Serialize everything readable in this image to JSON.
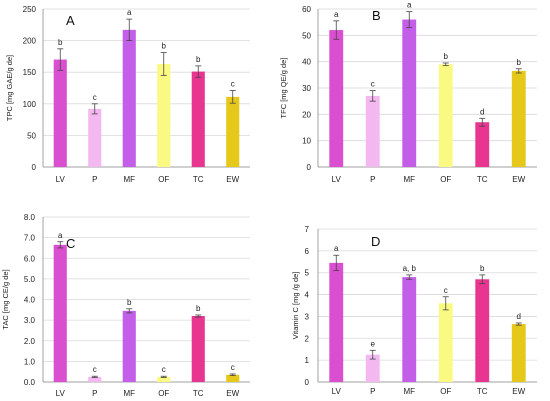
{
  "chart_data": [
    {
      "type": "bar",
      "panel_label": "A",
      "categories": [
        "LV",
        "P",
        "MF",
        "OF",
        "TC",
        "EW"
      ],
      "values": [
        170,
        92,
        217,
        163,
        151,
        111
      ],
      "errors": [
        17,
        8,
        17,
        18,
        9,
        10
      ],
      "significance": [
        "b",
        "c",
        "a",
        "b",
        "b",
        "c"
      ],
      "ylabel": "TPC [mg GAE/g de]",
      "ylim": [
        0,
        250
      ],
      "yticks": [
        "0",
        "50",
        "100",
        "150",
        "200",
        "250"
      ],
      "grid": true,
      "colors": [
        "#d94fd0",
        "#f3b8f0",
        "#c35ee8",
        "#fafa82",
        "#e8358f",
        "#e6c81a"
      ]
    },
    {
      "type": "bar",
      "panel_label": "B",
      "categories": [
        "LV",
        "P",
        "MF",
        "OF",
        "TC",
        "EW"
      ],
      "values": [
        52,
        27,
        56,
        39,
        17,
        36.5
      ],
      "errors": [
        3.5,
        2,
        3,
        0.5,
        1.5,
        0.8
      ],
      "significance": [
        "a",
        "c",
        "a",
        "b",
        "d",
        "b"
      ],
      "ylabel": "TFC [mg QE/g de]",
      "ylim": [
        0,
        60
      ],
      "yticks": [
        "0",
        "10",
        "20",
        "30",
        "40",
        "50",
        "60"
      ],
      "grid": true,
      "colors": [
        "#d94fd0",
        "#f3b8f0",
        "#c35ee8",
        "#fafa82",
        "#e8358f",
        "#e6c81a"
      ]
    },
    {
      "type": "bar",
      "panel_label": "C",
      "categories": [
        "LV",
        "P",
        "MF",
        "OF",
        "TC",
        "EW"
      ],
      "values": [
        6.65,
        0.25,
        3.45,
        0.25,
        3.2,
        0.35
      ],
      "errors": [
        0.15,
        0.03,
        0.1,
        0.03,
        0.05,
        0.04
      ],
      "significance": [
        "a",
        "c",
        "b",
        "c",
        "b",
        "c"
      ],
      "ylabel": "TAC [mg CE/g de]",
      "ylim": [
        0,
        8
      ],
      "yticks": [
        "0.0",
        "1.0",
        "2.0",
        "3.0",
        "4.0",
        "5.0",
        "6.0",
        "7.0",
        "8.0"
      ],
      "grid": true,
      "colors": [
        "#d94fd0",
        "#f3b8f0",
        "#c35ee8",
        "#fafa82",
        "#e8358f",
        "#e6c81a"
      ]
    },
    {
      "type": "bar",
      "panel_label": "D",
      "categories": [
        "LV",
        "P",
        "MF",
        "OF",
        "TC",
        "EW"
      ],
      "values": [
        5.45,
        1.25,
        4.8,
        3.6,
        4.7,
        2.65
      ],
      "errors": [
        0.35,
        0.2,
        0.1,
        0.3,
        0.2,
        0.05
      ],
      "significance": [
        "a",
        "e",
        "a, b",
        "c",
        "b",
        "d"
      ],
      "ylabel": "Vitamin C [mg /g de]",
      "ylim": [
        0,
        7
      ],
      "yticks": [
        "0",
        "1",
        "2",
        "3",
        "4",
        "5",
        "6",
        "7"
      ],
      "grid": true,
      "colors": [
        "#d94fd0",
        "#f3b8f0",
        "#c35ee8",
        "#fafa82",
        "#e8358f",
        "#e6c81a"
      ]
    }
  ]
}
